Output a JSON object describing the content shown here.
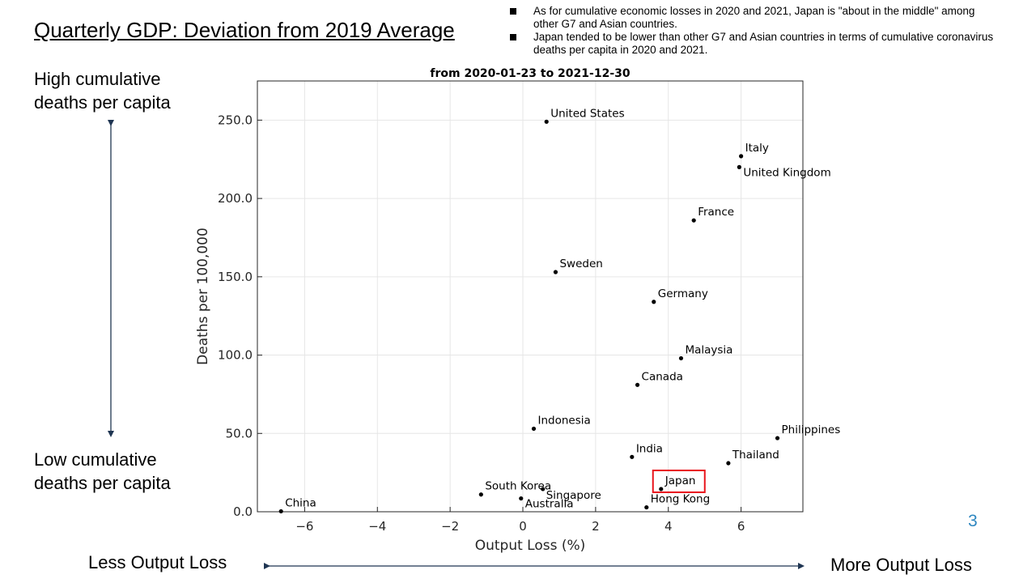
{
  "slide": {
    "title": "Quarterly GDP: Deviation from 2019 Average",
    "bullets": [
      "As for cumulative economic losses in 2020 and 2021, Japan is \"about in the middle\" among other G7 and Asian countries.",
      "Japan tended to be lower than other G7 and Asian countries in terms of cumulative coronavirus deaths per capita in 2020 and 2021."
    ],
    "high_label": "High cumulative deaths per capita",
    "low_label": "Low cumulative deaths per capita",
    "less_label": "Less Output Loss",
    "more_label": "More Output Loss",
    "page_number": "3"
  },
  "chart_data": {
    "type": "scatter",
    "title": "from 2020-01-23 to 2021-12-30",
    "xlabel": "Output Loss (%)",
    "ylabel": "Deaths per 100,000",
    "xlim": [
      -7.3,
      7.7
    ],
    "ylim": [
      0,
      275
    ],
    "xticks": [
      -6,
      -4,
      -2,
      0,
      2,
      4,
      6
    ],
    "yticks": [
      0,
      50,
      100,
      150,
      200,
      250
    ],
    "ytick_labels": [
      "0.0",
      "50.0",
      "100.0",
      "150.0",
      "200.0",
      "250.0"
    ],
    "grid": true,
    "highlight": "Japan",
    "highlight_color": "#e8141b",
    "points": [
      {
        "label": "United States",
        "x": 0.65,
        "y": 249
      },
      {
        "label": "Italy",
        "x": 6.0,
        "y": 227
      },
      {
        "label": "United Kingdom",
        "x": 5.95,
        "y": 220
      },
      {
        "label": "France",
        "x": 4.7,
        "y": 186
      },
      {
        "label": "Sweden",
        "x": 0.9,
        "y": 153
      },
      {
        "label": "Germany",
        "x": 3.6,
        "y": 134
      },
      {
        "label": "Malaysia",
        "x": 4.35,
        "y": 98
      },
      {
        "label": "Canada",
        "x": 3.15,
        "y": 81
      },
      {
        "label": "Indonesia",
        "x": 0.3,
        "y": 53
      },
      {
        "label": "Philippines",
        "x": 7.0,
        "y": 47
      },
      {
        "label": "India",
        "x": 3.0,
        "y": 35
      },
      {
        "label": "Thailand",
        "x": 5.65,
        "y": 31
      },
      {
        "label": "Japan",
        "x": 3.8,
        "y": 14.5
      },
      {
        "label": "South Korea",
        "x": -1.15,
        "y": 11
      },
      {
        "label": "Singapore",
        "x": 0.55,
        "y": 14.5
      },
      {
        "label": "Australia",
        "x": -0.05,
        "y": 8.5
      },
      {
        "label": "Hong Kong",
        "x": 3.4,
        "y": 2.8
      },
      {
        "label": "China",
        "x": -6.65,
        "y": 0.3
      }
    ]
  }
}
